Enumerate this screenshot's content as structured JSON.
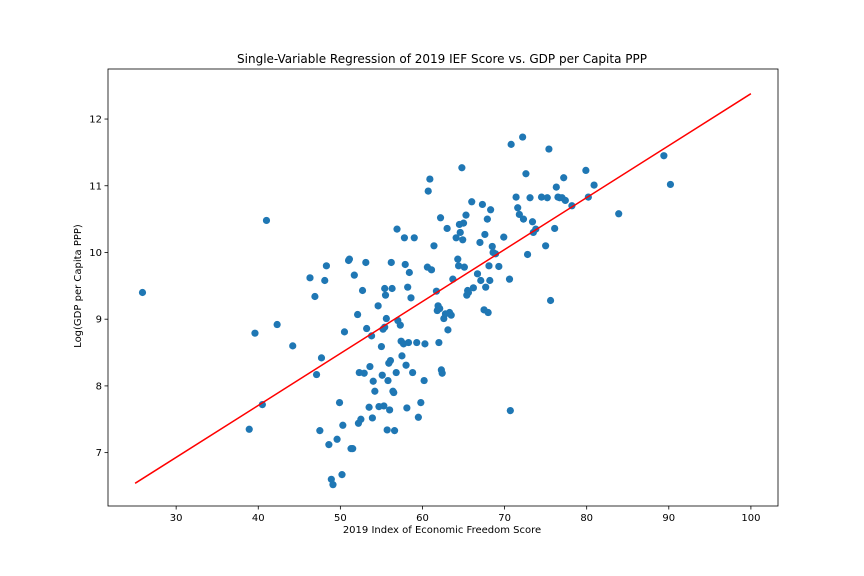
{
  "chart_data": {
    "type": "scatter",
    "title": "Single-Variable Regression of 2019 IEF Score vs. GDP per Capita PPP",
    "xlabel": "2019 Index of Economic Freedom Score",
    "ylabel": "Log(GDP per Capita PPP)",
    "xlim": [
      21.7,
      103.3
    ],
    "ylim": [
      6.2,
      12.75
    ],
    "xticks": [
      30,
      40,
      50,
      60,
      70,
      80,
      90,
      100
    ],
    "yticks": [
      7,
      8,
      9,
      10,
      11,
      12
    ],
    "grid": false,
    "legend": "none",
    "colors": {
      "points": "#1f77b4",
      "regression_line": "#ff0000"
    },
    "series": [
      {
        "kind": "scatter",
        "points": [
          [
            25.9,
            9.4
          ],
          [
            38.9,
            7.35
          ],
          [
            39.6,
            8.79
          ],
          [
            40.5,
            7.72
          ],
          [
            41.0,
            10.48
          ],
          [
            42.3,
            8.92
          ],
          [
            44.2,
            8.6
          ],
          [
            46.3,
            9.62
          ],
          [
            46.9,
            9.34
          ],
          [
            47.1,
            8.17
          ],
          [
            47.5,
            7.33
          ],
          [
            47.7,
            8.42
          ],
          [
            48.1,
            9.58
          ],
          [
            48.3,
            9.8
          ],
          [
            48.6,
            7.12
          ],
          [
            48.9,
            6.6
          ],
          [
            49.1,
            6.52
          ],
          [
            49.6,
            7.2
          ],
          [
            49.9,
            7.75
          ],
          [
            50.2,
            6.67
          ],
          [
            50.3,
            7.41
          ],
          [
            50.5,
            8.81
          ],
          [
            51.0,
            9.88
          ],
          [
            51.1,
            9.9
          ],
          [
            51.3,
            7.06
          ],
          [
            51.5,
            7.06
          ],
          [
            51.7,
            9.66
          ],
          [
            52.1,
            9.07
          ],
          [
            52.2,
            7.44
          ],
          [
            52.3,
            8.2
          ],
          [
            52.5,
            7.5
          ],
          [
            52.7,
            9.43
          ],
          [
            52.9,
            8.19
          ],
          [
            53.1,
            9.85
          ],
          [
            53.2,
            8.86
          ],
          [
            53.5,
            7.68
          ],
          [
            53.6,
            8.29
          ],
          [
            53.8,
            8.75
          ],
          [
            53.9,
            7.52
          ],
          [
            54.0,
            8.07
          ],
          [
            54.2,
            7.92
          ],
          [
            54.6,
            9.2
          ],
          [
            54.7,
            7.69
          ],
          [
            55.0,
            8.59
          ],
          [
            55.1,
            8.16
          ],
          [
            55.2,
            8.85
          ],
          [
            55.3,
            7.7
          ],
          [
            55.4,
            8.88
          ],
          [
            55.4,
            9.46
          ],
          [
            55.5,
            9.36
          ],
          [
            55.6,
            9.01
          ],
          [
            55.7,
            7.34
          ],
          [
            55.8,
            8.08
          ],
          [
            55.9,
            8.34
          ],
          [
            56.0,
            7.64
          ],
          [
            56.1,
            8.38
          ],
          [
            56.2,
            9.85
          ],
          [
            56.3,
            9.46
          ],
          [
            56.4,
            7.92
          ],
          [
            56.5,
            7.9
          ],
          [
            56.6,
            7.33
          ],
          [
            56.8,
            8.2
          ],
          [
            56.9,
            10.35
          ],
          [
            57.0,
            8.98
          ],
          [
            57.3,
            8.91
          ],
          [
            57.4,
            8.67
          ],
          [
            57.5,
            8.45
          ],
          [
            57.7,
            8.63
          ],
          [
            57.8,
            10.22
          ],
          [
            57.9,
            9.82
          ],
          [
            58.0,
            8.31
          ],
          [
            58.1,
            7.67
          ],
          [
            58.2,
            9.48
          ],
          [
            58.3,
            8.65
          ],
          [
            58.4,
            9.7
          ],
          [
            58.6,
            9.32
          ],
          [
            58.8,
            8.2
          ],
          [
            59.0,
            10.22
          ],
          [
            59.3,
            8.65
          ],
          [
            59.5,
            7.53
          ],
          [
            59.8,
            7.75
          ],
          [
            60.2,
            8.08
          ],
          [
            60.3,
            8.63
          ],
          [
            60.6,
            9.78
          ],
          [
            60.7,
            10.92
          ],
          [
            60.9,
            11.1
          ],
          [
            61.1,
            9.74
          ],
          [
            61.4,
            10.1
          ],
          [
            61.7,
            9.42
          ],
          [
            61.8,
            9.13
          ],
          [
            61.9,
            9.2
          ],
          [
            62.0,
            8.65
          ],
          [
            62.1,
            9.16
          ],
          [
            62.2,
            10.52
          ],
          [
            62.3,
            8.24
          ],
          [
            62.4,
            8.19
          ],
          [
            62.6,
            9.01
          ],
          [
            62.8,
            9.08
          ],
          [
            63.0,
            10.36
          ],
          [
            63.1,
            8.84
          ],
          [
            63.3,
            9.1
          ],
          [
            63.5,
            9.06
          ],
          [
            63.7,
            9.6
          ],
          [
            64.1,
            10.22
          ],
          [
            64.3,
            9.9
          ],
          [
            64.4,
            9.8
          ],
          [
            64.5,
            10.42
          ],
          [
            64.6,
            10.3
          ],
          [
            64.8,
            11.27
          ],
          [
            64.9,
            10.19
          ],
          [
            65.0,
            10.44
          ],
          [
            65.1,
            9.78
          ],
          [
            65.3,
            10.56
          ],
          [
            65.4,
            9.36
          ],
          [
            65.5,
            9.43
          ],
          [
            65.6,
            9.4
          ],
          [
            66.0,
            10.76
          ],
          [
            66.2,
            9.47
          ],
          [
            66.7,
            9.68
          ],
          [
            67.0,
            10.15
          ],
          [
            67.1,
            9.58
          ],
          [
            67.3,
            10.72
          ],
          [
            67.5,
            9.14
          ],
          [
            67.6,
            10.27
          ],
          [
            67.7,
            9.48
          ],
          [
            67.9,
            10.5
          ],
          [
            68.0,
            9.1
          ],
          [
            68.1,
            9.8
          ],
          [
            68.2,
            9.58
          ],
          [
            68.3,
            10.64
          ],
          [
            68.5,
            10.09
          ],
          [
            68.6,
            10.0
          ],
          [
            68.9,
            9.98
          ],
          [
            69.3,
            9.79
          ],
          [
            69.9,
            10.23
          ],
          [
            70.6,
            9.6
          ],
          [
            70.7,
            7.63
          ],
          [
            70.8,
            11.62
          ],
          [
            71.4,
            10.83
          ],
          [
            71.6,
            10.67
          ],
          [
            71.8,
            10.57
          ],
          [
            72.2,
            11.73
          ],
          [
            72.3,
            10.5
          ],
          [
            72.6,
            11.18
          ],
          [
            72.8,
            9.97
          ],
          [
            73.1,
            10.82
          ],
          [
            73.4,
            10.46
          ],
          [
            73.5,
            10.3
          ],
          [
            73.8,
            10.35
          ],
          [
            74.5,
            10.83
          ],
          [
            75.0,
            10.1
          ],
          [
            75.2,
            10.82
          ],
          [
            75.4,
            11.55
          ],
          [
            75.6,
            9.28
          ],
          [
            76.1,
            10.36
          ],
          [
            76.3,
            10.98
          ],
          [
            76.5,
            10.83
          ],
          [
            76.7,
            10.82
          ],
          [
            77.0,
            10.82
          ],
          [
            77.2,
            11.12
          ],
          [
            77.4,
            10.78
          ],
          [
            78.2,
            10.7
          ],
          [
            79.9,
            11.23
          ],
          [
            80.2,
            10.83
          ],
          [
            80.9,
            11.01
          ],
          [
            83.9,
            10.58
          ],
          [
            89.4,
            11.45
          ],
          [
            90.2,
            11.02
          ]
        ]
      },
      {
        "kind": "line",
        "x": [
          25,
          100
        ],
        "y": [
          6.54,
          12.38
        ]
      }
    ]
  }
}
